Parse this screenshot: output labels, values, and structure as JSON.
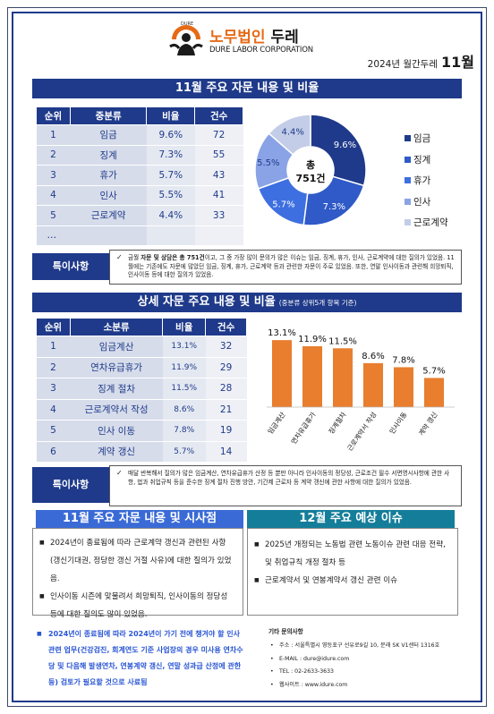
{
  "header": {
    "brand_small": "DURE",
    "brand_ko_part1": "노무법인 ",
    "brand_ko_part2": "두레",
    "brand_en": "DURE LABOR CORPORATION",
    "issue_label": "2024년 월간두레",
    "issue_month": "11월"
  },
  "section1": {
    "title": "11월 주요 자문 내용 및 비율",
    "table_headers": [
      "순위",
      "중분류",
      "비율",
      "건수"
    ],
    "rows": [
      [
        "1",
        "임금",
        "9.6%",
        "72"
      ],
      [
        "2",
        "징계",
        "7.3%",
        "55"
      ],
      [
        "3",
        "휴가",
        "5.7%",
        "43"
      ],
      [
        "4",
        "인사",
        "5.5%",
        "41"
      ],
      [
        "5",
        "근로계약",
        "4.4%",
        "33"
      ],
      [
        "…",
        "",
        "",
        ""
      ]
    ],
    "note_label": "특이사항",
    "note_check": "✓",
    "note_lead": "금월 ",
    "note_bold1": "자문 및 상담은 총 751건",
    "note_text": "이고, 그 중 가장 많이 문의가 많은 이슈는 임금, 징계, 휴가, 인사, 근로계약에 대한 질의가 있었음. 11월에는 기존에도 자문에 많았던 임금, 징계, 휴가, 근로계약 등과 관련한 자문이 주로 있었음. 또한, 연말 인사이동과 관련해 희망퇴직, 인사이동 등에 대한 질의가 있었음."
  },
  "donut": {
    "center_line1": "총",
    "center_line2": "751건",
    "slice_labels": [
      "9.6%",
      "7.3%",
      "5.7%",
      "5.5%",
      "4.4%"
    ],
    "legend": [
      "임금",
      "징계",
      "휴가",
      "인사",
      "근로계약"
    ],
    "colors": [
      "#1f3a8a",
      "#2f5ac8",
      "#3d6fe0",
      "#8aa3e6",
      "#c3cde8"
    ]
  },
  "section2": {
    "title": "상세 자문 주요 내용 및 비율",
    "title_sub": "(중분류 상위5개 항목 기준)",
    "table_headers": [
      "순위",
      "소분류",
      "비율",
      "건수"
    ],
    "rows": [
      [
        "1",
        "임금계산",
        "13.1%",
        "32"
      ],
      [
        "2",
        "연차유급휴가",
        "11.9%",
        "29"
      ],
      [
        "3",
        "징계 절차",
        "11.5%",
        "28"
      ],
      [
        "4",
        "근로계약서 작성",
        "8.6%",
        "21"
      ],
      [
        "5",
        "인사 이동",
        "7.8%",
        "19"
      ],
      [
        "6",
        "계약 갱신",
        "5.7%",
        "14"
      ]
    ],
    "note_label": "특이사항",
    "note_check": "✓",
    "note_text": "매달 반복해서 질의가 많은 임금계산, 연차유급휴가 산정 등 뿐만 아니라 인사이동의 정당성, 근로조건 필수 서면명시사항에 관한 사항, 법과 취업규칙 등을 준수한 징계 절차 진행 방안, 기간제 근로자 등 계약 갱신에 관한 사항에 대한 질의가 있었음."
  },
  "chart_data": {
    "type": "bar",
    "categories": [
      "임금계산",
      "연차유급휴가",
      "징계절차",
      "근로계약서 작성",
      "인사이동",
      "계약 갱신"
    ],
    "values": [
      13.1,
      11.9,
      11.5,
      8.6,
      7.8,
      5.7
    ],
    "value_labels": [
      "13.1%",
      "11.9%",
      "11.5%",
      "8.6%",
      "7.8%",
      "5.7%"
    ],
    "ylim": [
      0,
      14
    ],
    "color": "#e87e2e",
    "grid": false
  },
  "section3": {
    "left_title": "11월 주요 자문 내용 및 시사점",
    "left_items": [
      "2024년이 종료됨에 따라 근로계약 갱신과 관련된 사항 (갱신기대권, 정당한 갱신 거절 사유)에 대한 질의가 있었음.",
      "인사이동 시즌에 맞물려서 희망퇴직, 인사이동의 정당성 등에 대한 질의도 많이 있었음."
    ],
    "right_title": "12월 주요 예상 이슈",
    "right_items": [
      "2025년 개정되는 노동법 관련 노동이슈 관련 대응 전략, 및 취업규칙 개정 절차 등",
      "근로계약서 및 연봉계약서 갱신 관련 이슈"
    ],
    "blue_note": "2024년이 종료됨에 따라 2024년이 가기 전에 챙겨야 할 인사 관련 업무(건강검진, 회계연도 기준 사업장의 경우 미사용 연차수당 및 다음해 발생연차, 연봉계약 갱신, 연말 성과급 산정에 관한 등) 검토가 필요할 것으로 사료됨",
    "blue_note_marker": "■"
  },
  "contact": {
    "title": "기타 문의사항",
    "address": "주소 : 서울특별시 영등포구 선유로9길 10, 문래 SK V1센터 1316호",
    "email": "E-MAIL : dure@idure.com",
    "tel": "TEL : 02-2633-3633",
    "web": "웹사이트 : www.idure.com"
  }
}
